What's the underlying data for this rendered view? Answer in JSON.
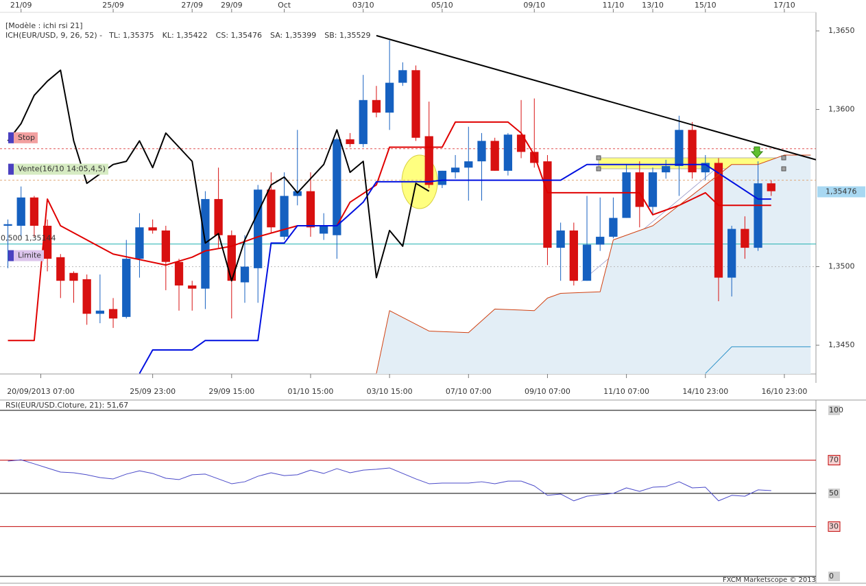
{
  "chart_data": [
    {
      "type": "candlestick",
      "subtitle": "[Modèle : ichi rsi 21]",
      "title": "ICH(EUR/USD, 9, 26, 52) -",
      "title_color": "#c00000",
      "up_color": "#1560c0",
      "down_color": "#d81010",
      "ohlc": [
        [
          1.3526,
          1.353,
          1.3499,
          1.3527
        ],
        [
          1.3526,
          1.3551,
          1.3519,
          1.3544
        ],
        [
          1.3544,
          1.3545,
          1.3519,
          1.3526
        ],
        [
          1.3526,
          1.353,
          1.3497,
          1.3505
        ],
        [
          1.3506,
          1.3508,
          1.348,
          1.3491
        ],
        [
          1.3496,
          1.3497,
          1.3477,
          1.3491
        ],
        [
          1.3492,
          1.3495,
          1.3463,
          1.347
        ],
        [
          1.347,
          1.3495,
          1.3464,
          1.3472
        ],
        [
          1.3473,
          1.348,
          1.3461,
          1.3467
        ],
        [
          1.3468,
          1.3517,
          1.3467,
          1.3505
        ],
        [
          1.3505,
          1.3534,
          1.3493,
          1.3525
        ],
        [
          1.3525,
          1.353,
          1.3521,
          1.3523
        ],
        [
          1.3523,
          1.3526,
          1.3485,
          1.3503
        ],
        [
          1.3503,
          1.3505,
          1.3472,
          1.3488
        ],
        [
          1.3488,
          1.3491,
          1.3472,
          1.3486
        ],
        [
          1.3486,
          1.3548,
          1.3473,
          1.3543
        ],
        [
          1.3543,
          1.3563,
          1.3512,
          1.352
        ],
        [
          1.352,
          1.3523,
          1.3467,
          1.3491
        ],
        [
          1.349,
          1.352,
          1.3477,
          1.35
        ],
        [
          1.3499,
          1.3552,
          1.3477,
          1.3549
        ],
        [
          1.3549,
          1.356,
          1.3521,
          1.3525
        ],
        [
          1.3519,
          1.356,
          1.3517,
          1.3545
        ],
        [
          1.3545,
          1.3587,
          1.3539,
          1.3548
        ],
        [
          1.3548,
          1.356,
          1.3519,
          1.3525
        ],
        [
          1.3521,
          1.3534,
          1.3517,
          1.3526
        ],
        [
          1.352,
          1.3582,
          1.3505,
          1.3581
        ],
        [
          1.3581,
          1.3585,
          1.3576,
          1.3578
        ],
        [
          1.3578,
          1.3622,
          1.3576,
          1.3606
        ],
        [
          1.3606,
          1.3615,
          1.3595,
          1.3598
        ],
        [
          1.3598,
          1.3644,
          1.3587,
          1.3617
        ],
        [
          1.3617,
          1.363,
          1.3615,
          1.3625
        ],
        [
          1.3625,
          1.3628,
          1.358,
          1.3582
        ],
        [
          1.3583,
          1.3605,
          1.355,
          1.3552
        ],
        [
          1.3552,
          1.3561,
          1.355,
          1.3561
        ],
        [
          1.356,
          1.3571,
          1.3556,
          1.3563
        ],
        [
          1.3563,
          1.3589,
          1.3542,
          1.3567
        ],
        [
          1.3567,
          1.3585,
          1.3542,
          1.358
        ],
        [
          1.358,
          1.3582,
          1.3561,
          1.3561
        ],
        [
          1.3561,
          1.3585,
          1.3558,
          1.3584
        ],
        [
          1.3584,
          1.3606,
          1.3569,
          1.3573
        ],
        [
          1.3573,
          1.3607,
          1.3563,
          1.3566
        ],
        [
          1.3567,
          1.3571,
          1.3501,
          1.3512
        ],
        [
          1.3512,
          1.3528,
          1.3491,
          1.3523
        ],
        [
          1.3523,
          1.3528,
          1.3488,
          1.3491
        ],
        [
          1.3491,
          1.3545,
          1.3491,
          1.3514
        ],
        [
          1.3514,
          1.3544,
          1.351,
          1.3519
        ],
        [
          1.3519,
          1.3544,
          1.3518,
          1.3531
        ],
        [
          1.3531,
          1.3565,
          1.3531,
          1.356
        ],
        [
          1.356,
          1.3567,
          1.3525,
          1.3538
        ],
        [
          1.3538,
          1.3563,
          1.3533,
          1.356
        ],
        [
          1.356,
          1.3568,
          1.3556,
          1.3564
        ],
        [
          1.3564,
          1.3596,
          1.3545,
          1.3587
        ],
        [
          1.3587,
          1.3592,
          1.3556,
          1.356
        ],
        [
          1.356,
          1.3571,
          1.3555,
          1.3566
        ],
        [
          1.3566,
          1.3569,
          1.3478,
          1.3493
        ],
        [
          1.3493,
          1.3526,
          1.3481,
          1.3524
        ],
        [
          1.3524,
          1.3532,
          1.3505,
          1.3512
        ],
        [
          1.3512,
          1.3567,
          1.351,
          1.3553
        ],
        [
          1.3553,
          1.3555,
          1.3545,
          1.3548
        ]
      ],
      "series": [
        {
          "name": "TL: 1,35375",
          "color": "#e00000",
          "width": 2,
          "x": [
            0,
            2,
            3,
            4,
            6,
            8,
            12,
            14,
            15,
            17,
            19,
            22,
            25,
            26,
            28,
            29,
            33,
            34,
            38,
            39,
            40,
            41,
            48,
            49,
            51,
            53,
            54,
            58
          ],
          "values": [
            1.3453,
            1.3453,
            1.3543,
            1.3526,
            1.3517,
            1.3508,
            1.3501,
            1.3506,
            1.351,
            1.3513,
            1.3519,
            1.3526,
            1.3526,
            1.3541,
            1.3552,
            1.3576,
            1.3576,
            1.3592,
            1.3592,
            1.3585,
            1.3571,
            1.3547,
            1.3547,
            1.3533,
            1.3539,
            1.3547,
            1.3539,
            1.3539
          ]
        },
        {
          "name": "KL: 1,35422",
          "color": "#0010e0",
          "width": 2,
          "x": [
            10,
            11,
            14,
            15,
            19,
            20,
            21,
            22,
            25,
            27,
            28,
            32,
            33,
            42,
            43,
            44,
            53,
            55,
            57,
            58
          ],
          "values": [
            1.3432,
            1.3447,
            1.3447,
            1.3453,
            1.3453,
            1.3515,
            1.3515,
            1.3526,
            1.3526,
            1.3541,
            1.3554,
            1.3554,
            1.3555,
            1.3555,
            1.356,
            1.3565,
            1.3565,
            1.3554,
            1.3543,
            1.3543
          ]
        },
        {
          "name": "CS: 1,35476",
          "color": "#000000",
          "width": 2,
          "x": [
            0,
            1,
            2,
            3,
            4,
            5,
            6,
            8,
            9,
            10,
            11,
            12,
            14,
            15,
            16,
            17,
            18,
            20,
            21,
            22,
            24,
            25,
            26,
            27,
            28,
            29,
            30,
            31,
            32
          ],
          "values": [
            1.358,
            1.3591,
            1.3609,
            1.3618,
            1.3625,
            1.358,
            1.3553,
            1.3565,
            1.3567,
            1.358,
            1.3563,
            1.3585,
            1.3567,
            1.3515,
            1.3521,
            1.3491,
            1.3517,
            1.3552,
            1.3557,
            1.3547,
            1.3565,
            1.3587,
            1.356,
            1.3567,
            1.3493,
            1.3523,
            1.3513,
            1.3553,
            1.3548
          ]
        },
        {
          "name": "SA: 1,35399",
          "color": "#d04010",
          "width": 1,
          "fill": "#e3eef6",
          "x": [
            28,
            29,
            32,
            35,
            37,
            40,
            41,
            42,
            45,
            46,
            49,
            51,
            53,
            55,
            57,
            59,
            61
          ],
          "values": [
            1.3432,
            1.3472,
            1.3459,
            1.3458,
            1.3473,
            1.3472,
            1.348,
            1.3483,
            1.3484,
            1.3517,
            1.3526,
            1.3539,
            1.3552,
            1.3565,
            1.3565,
            1.3571,
            1.3571
          ]
        },
        {
          "name": "SB: 1,35529",
          "color": "#2a90c8",
          "width": 1,
          "x": [
            53,
            55,
            61
          ],
          "values": [
            1.3432,
            1.3449,
            1.3449
          ]
        }
      ],
      "trendline": {
        "color": "#000000",
        "x": [
          28,
          61.4
        ],
        "values": [
          1.3647,
          1.3568
        ]
      },
      "hlines": [
        {
          "label": "Stop",
          "value": 1.3575,
          "color": "#e05050",
          "dash": "3,3",
          "label_bg": "#f2a0a0",
          "label_color": "#c04040"
        },
        {
          "label": "Vente(16/10 14:05,4,5)",
          "value": 1.3555,
          "color": "#e0a878",
          "dash": "3,3",
          "label_bg": "#d6ebc2",
          "label_color": "#508040"
        },
        {
          "label": "0,500 1,35144",
          "value": 1.35144,
          "color": "#20b0b0",
          "label_color": "#000000"
        },
        {
          "label": "Limite",
          "value": 1.35,
          "color": "#b8b8b8",
          "dash": "2,3",
          "label_bg": "#dcc4ec",
          "label_color": "#7040a0"
        }
      ],
      "last_price": {
        "value": 1.35476,
        "label": "1,35476"
      },
      "xlim": [
        -0.6,
        61.4
      ],
      "ylim": [
        1.34317,
        1.36618
      ],
      "yticks": [
        {
          "value": 1.345,
          "label": "1,3450"
        },
        {
          "value": 1.35,
          "label": "1,3500"
        },
        {
          "value": 1.36,
          "label": "1,3600"
        },
        {
          "value": 1.365,
          "label": "1,3650"
        }
      ],
      "xticks": [
        {
          "value": 2.5,
          "label": "20/09/2013 07:00"
        },
        {
          "value": 11,
          "label": "25/09 23:00"
        },
        {
          "value": 17,
          "label": "29/09 15:00"
        },
        {
          "value": 23,
          "label": "01/10 15:00"
        },
        {
          "value": 29,
          "label": "03/10 15:00"
        },
        {
          "value": 35,
          "label": "07/10 07:00"
        },
        {
          "value": 41,
          "label": "09/10 07:00"
        },
        {
          "value": 47,
          "label": "11/10 07:00"
        },
        {
          "value": 53,
          "label": "14/10 23:00"
        },
        {
          "value": 59,
          "label": "16/10 23:00"
        }
      ],
      "top_xticks": [
        {
          "value": 1,
          "label": "21/09"
        },
        {
          "value": 8,
          "label": "25/09"
        },
        {
          "value": 14,
          "label": "27/09"
        },
        {
          "value": 17,
          "label": "29/09"
        },
        {
          "value": 21,
          "label": "Oct"
        },
        {
          "value": 27,
          "label": "03/10"
        },
        {
          "value": 33,
          "label": "05/10"
        },
        {
          "value": 40,
          "label": "09/10"
        },
        {
          "value": 46,
          "label": "11/10"
        },
        {
          "value": 49,
          "label": "13/10"
        },
        {
          "value": 53,
          "label": "15/10"
        },
        {
          "value": 59,
          "label": "17/10"
        }
      ]
    },
    {
      "type": "line",
      "title": "RSI(EUR/USD.Cloture, 21): 51,67",
      "series": [
        {
          "color": "#4848c8",
          "x": [
            0,
            1,
            2,
            3,
            4,
            5,
            6,
            7,
            8,
            9,
            10,
            11,
            12,
            13,
            14,
            15,
            16,
            17,
            18,
            19,
            20,
            21,
            22,
            23,
            24,
            25,
            26,
            27,
            28,
            29,
            30,
            31,
            32,
            33,
            34,
            35,
            36,
            37,
            38,
            39,
            40,
            41,
            42,
            43,
            44,
            45,
            46,
            47,
            48,
            49,
            50,
            51,
            52,
            53,
            54,
            55,
            56,
            57,
            58
          ],
          "values": [
            69.4,
            70.2,
            67.8,
            65.3,
            62.8,
            62.4,
            61.2,
            59.5,
            58.7,
            61.6,
            63.6,
            62.0,
            59.1,
            58.3,
            61.2,
            61.6,
            58.7,
            55.8,
            57.0,
            60.3,
            62.4,
            60.7,
            61.2,
            64.0,
            62.0,
            64.9,
            62.4,
            64.0,
            64.5,
            65.3,
            62.0,
            58.7,
            55.8,
            56.2,
            56.2,
            56.2,
            57.0,
            55.8,
            57.4,
            57.4,
            54.5,
            48.8,
            49.6,
            45.5,
            48.3,
            49.2,
            50.0,
            53.3,
            51.2,
            53.7,
            54.1,
            57.0,
            53.3,
            53.7,
            45.5,
            48.8,
            48.3,
            52.1,
            51.67
          ]
        }
      ],
      "xlim": [
        -0.6,
        61.4
      ],
      "ylim": [
        0,
        100
      ],
      "yticks": [
        100,
        70,
        50,
        30,
        0
      ],
      "tick_colors": [
        "#000000",
        "#c00000",
        "#000000",
        "#c00000",
        "#000000"
      ]
    }
  ],
  "footer": "FXCM Marketscope © 2013"
}
